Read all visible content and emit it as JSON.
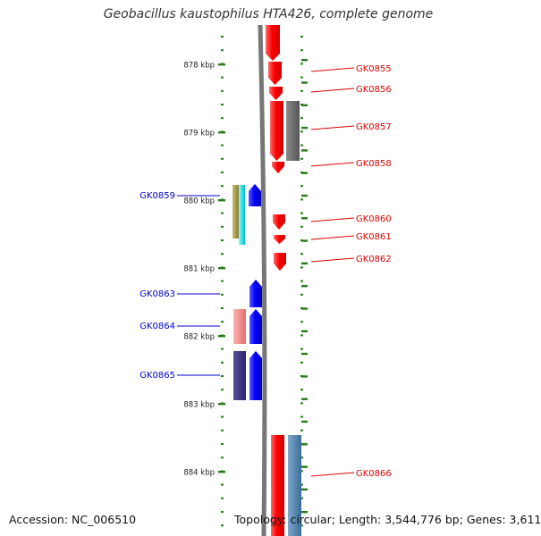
{
  "title": "Geobacillus kaustophilus HTA426, complete genome",
  "footer": {
    "accession": "Accession: NC_006510",
    "summary": "Topology: circular; Length: 3,544,776 bp; Genes: 3,611"
  },
  "ruler": {
    "labels": [
      "878 kbp",
      "879 kbp",
      "880 kbp",
      "881 kbp",
      "882 kbp",
      "883 kbp",
      "884 kbp"
    ]
  },
  "colors": {
    "forward_gene": "#ff0000",
    "reverse_gene": "#0000ff",
    "forward_label": "#dd0000",
    "reverse_label": "#0000cc",
    "backbone": "#777777",
    "ticks": "#2a7a1a"
  },
  "forward_genes": [
    "GK0855",
    "GK0856",
    "GK0857",
    "GK0858",
    "GK0860",
    "GK0861",
    "GK0862",
    "GK0866"
  ],
  "reverse_genes": [
    "GK0859",
    "GK0863",
    "GK0864",
    "GK0865"
  ]
}
